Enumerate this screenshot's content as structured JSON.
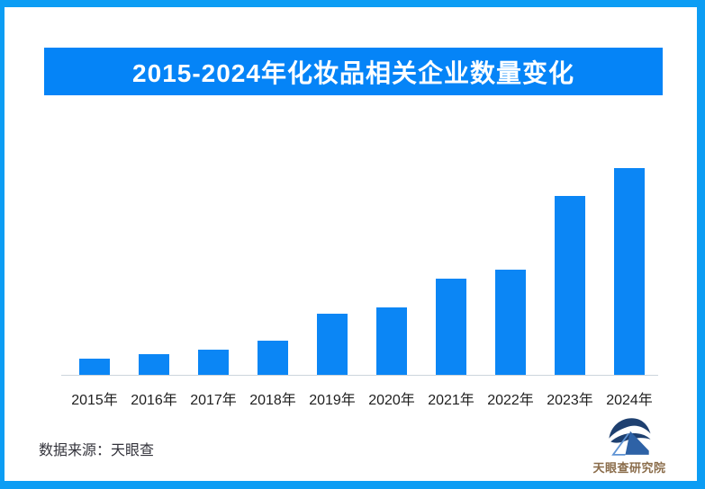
{
  "page": {
    "frame_color": "#0C9DF4",
    "background_color": "#FFFFFF"
  },
  "header": {
    "title": "2015-2024年化妆品相关企业数量变化",
    "banner_color": "#0584F7",
    "title_color": "#FFFFFF"
  },
  "chart_data": {
    "type": "bar",
    "title": "2015-2024年化妆品相关企业数量变化",
    "categories": [
      "2015年",
      "2016年",
      "2017年",
      "2018年",
      "2019年",
      "2020年",
      "2021年",
      "2022年",
      "2023年",
      "2024年"
    ],
    "values": [
      7.8,
      10.0,
      12.2,
      16.5,
      29.6,
      32.6,
      46.5,
      50.9,
      86.5,
      100
    ],
    "values_note": "No numeric axis or data labels are shown in the chart; values are relative bar heights as % of the tallest (2024) bar, estimated from pixels",
    "xlabel": "",
    "ylabel": "",
    "grid": false,
    "legend": false,
    "bar_color": "#0B86F5",
    "axis_line_color": "#CDD5DC",
    "tick_label_color": "#1F1F1F"
  },
  "footer": {
    "source_label": "数据来源：天眼查",
    "logo_text": "天眼查研究院",
    "logo_text_color": "#8A6C4A",
    "logo_mark_colors": {
      "swoosh": "#1E4070",
      "house_solid": "#2E62A6",
      "house_outline": "#5E93D4"
    }
  }
}
